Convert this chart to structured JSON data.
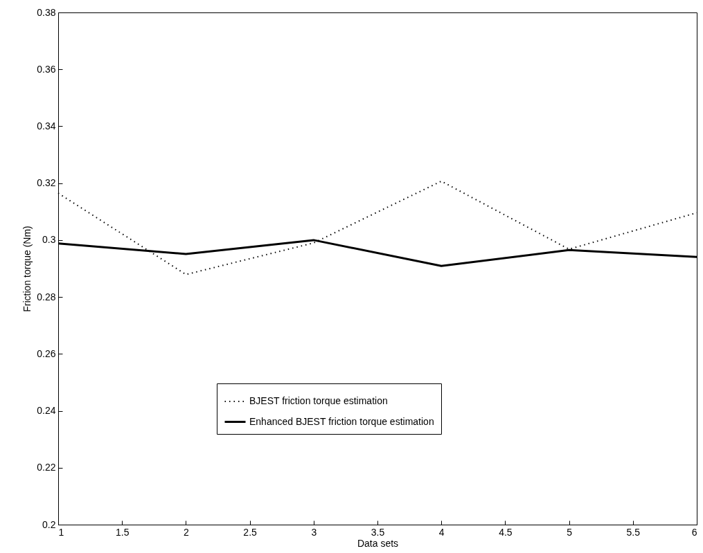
{
  "chart_data": {
    "type": "line",
    "xlabel": "Data sets",
    "ylabel": "Friction torque (Nm)",
    "x": [
      1,
      2,
      3,
      4,
      5,
      6
    ],
    "series": [
      {
        "name": "BJEST friction torque estimation",
        "color": "#000000",
        "line_style": "dotted",
        "values": [
          0.3165,
          0.2879,
          0.299,
          0.3207,
          0.2968,
          0.3096
        ]
      },
      {
        "name": "Enhanced BJEST friction torque estimation",
        "color": "#000000",
        "line_style": "solid",
        "values": [
          0.2988,
          0.2951,
          0.3,
          0.2909,
          0.2965,
          0.2941
        ]
      }
    ],
    "xlim": [
      1,
      6
    ],
    "xticks": [
      1,
      1.5,
      2,
      2.5,
      3,
      3.5,
      4,
      4.5,
      5,
      5.5,
      6
    ],
    "ylim": [
      0.2,
      0.38
    ],
    "yticks": [
      0.2,
      0.22,
      0.24,
      0.26,
      0.28,
      0.3,
      0.32,
      0.34,
      0.36,
      0.38
    ],
    "grid": false,
    "legend": "bottom",
    "marker": "none"
  }
}
